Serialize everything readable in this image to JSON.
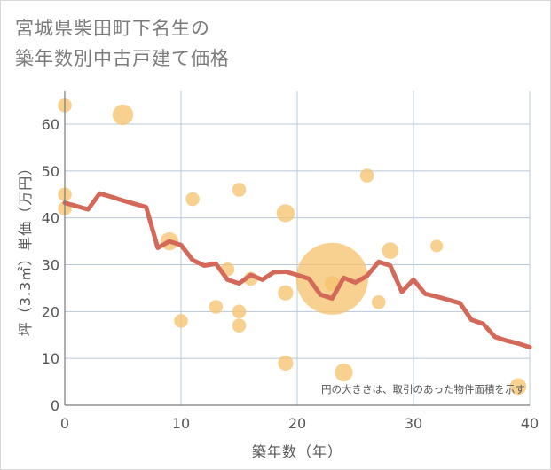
{
  "title": {
    "line1": "宮城県柴田町下名生の",
    "line2": "築年数別中古戸建て価格"
  },
  "colors": {
    "bubble": "#f5c26b",
    "line": "#d4695a",
    "grid": "#b8c8d8",
    "text": "#555555"
  },
  "chart_data": {
    "type": "scatter",
    "xlabel": "築年数（年）",
    "ylabel": "坪（3.3㎡）単価（万円）",
    "xlim": [
      0,
      40
    ],
    "ylim": [
      0,
      67
    ],
    "xticks": [
      0,
      10,
      20,
      30,
      40
    ],
    "yticks": [
      0,
      10,
      20,
      30,
      40,
      50,
      60
    ],
    "grid": true,
    "annotation": "円の大きさは、取引のあった物件面積を示す",
    "scatter": [
      {
        "x": 0,
        "y": 64,
        "size": 1
      },
      {
        "x": 0,
        "y": 45,
        "size": 1
      },
      {
        "x": 0,
        "y": 42,
        "size": 1
      },
      {
        "x": 5,
        "y": 62,
        "size": 1.5
      },
      {
        "x": 9,
        "y": 35,
        "size": 1.3
      },
      {
        "x": 10,
        "y": 18,
        "size": 1
      },
      {
        "x": 11,
        "y": 44,
        "size": 1
      },
      {
        "x": 13,
        "y": 21,
        "size": 1
      },
      {
        "x": 14,
        "y": 29,
        "size": 1
      },
      {
        "x": 15,
        "y": 46,
        "size": 1
      },
      {
        "x": 15,
        "y": 20,
        "size": 1
      },
      {
        "x": 15,
        "y": 17,
        "size": 1
      },
      {
        "x": 16,
        "y": 27,
        "size": 1
      },
      {
        "x": 19,
        "y": 41,
        "size": 1.3
      },
      {
        "x": 19,
        "y": 24,
        "size": 1.1
      },
      {
        "x": 19,
        "y": 9,
        "size": 1.1
      },
      {
        "x": 23,
        "y": 27,
        "size": 5.2
      },
      {
        "x": 23,
        "y": 26,
        "size": 1.1
      },
      {
        "x": 24,
        "y": 7,
        "size": 1.3
      },
      {
        "x": 26,
        "y": 49,
        "size": 1
      },
      {
        "x": 27,
        "y": 22,
        "size": 1
      },
      {
        "x": 28,
        "y": 33,
        "size": 1.2
      },
      {
        "x": 32,
        "y": 34,
        "size": 0.9
      },
      {
        "x": 39,
        "y": 4,
        "size": 1.2
      }
    ],
    "line": {
      "x": [
        0,
        1,
        2,
        3,
        4,
        5,
        6,
        7,
        8,
        9,
        10,
        11,
        12,
        13,
        14,
        15,
        16,
        17,
        18,
        19,
        20,
        21,
        22,
        23,
        24,
        25,
        26,
        27,
        28,
        29,
        30,
        31,
        32,
        33,
        34,
        35,
        36,
        37,
        38,
        39,
        40
      ],
      "y": [
        43.2,
        42.5,
        41.8,
        45.2,
        44.5,
        43.7,
        43.0,
        42.3,
        33.6,
        35.0,
        34.2,
        31.0,
        29.8,
        30.2,
        26.8,
        26.0,
        27.8,
        26.8,
        28.4,
        28.5,
        27.8,
        27.0,
        23.6,
        22.8,
        27.2,
        26.2,
        27.6,
        30.6,
        29.8,
        24.2,
        26.8,
        23.8,
        23.2,
        22.5,
        21.8,
        18.2,
        17.4,
        14.6,
        13.8,
        13.2,
        12.4
      ]
    }
  }
}
